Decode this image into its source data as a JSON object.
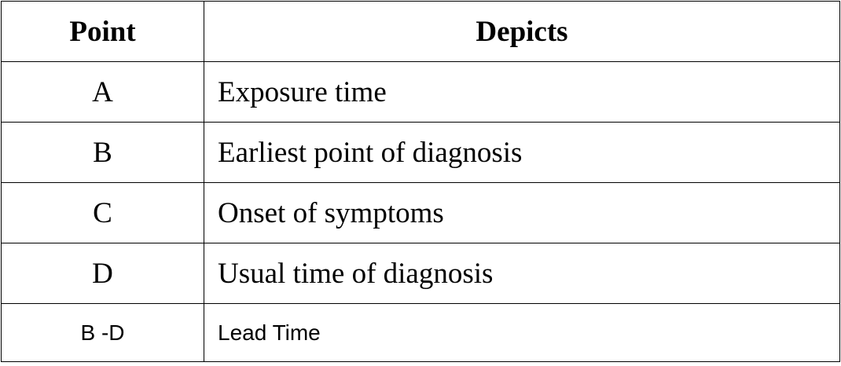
{
  "table": {
    "headers": {
      "point": "Point",
      "depicts": "Depicts"
    },
    "rows": [
      {
        "point": "A",
        "depicts": "Exposure time"
      },
      {
        "point": "B",
        "depicts": "Earliest point of diagnosis"
      },
      {
        "point": "C",
        "depicts": "Onset of symptoms"
      },
      {
        "point": "D",
        "depicts": "Usual time of diagnosis"
      },
      {
        "point": "B -D",
        "depicts": "Lead Time"
      }
    ]
  }
}
